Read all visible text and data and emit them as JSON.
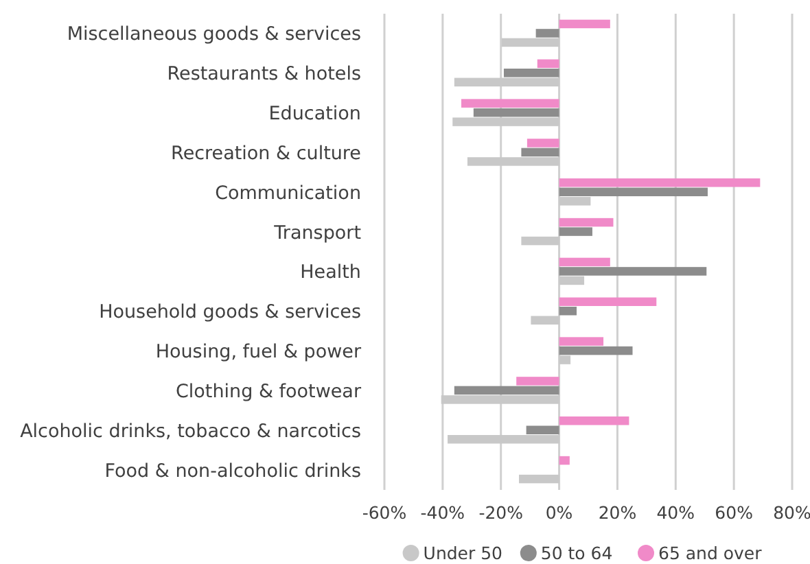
{
  "chart_data": {
    "type": "bar",
    "orientation": "horizontal",
    "categories": [
      "Miscellaneous goods & services",
      "Restaurants & hotels",
      "Education",
      "Recreation & culture",
      "Communication",
      "Transport",
      "Health",
      "Household goods & services",
      "Housing, fuel & power",
      "Clothing & footwear",
      "Alcoholic drinks, tobacco & narcotics",
      "Food & non-alcoholic drinks"
    ],
    "series": [
      {
        "name": "Under 50",
        "color": "#c8c8c8",
        "values": [
          -19.7,
          -36,
          -36.6,
          -31.5,
          10.8,
          -13,
          8.6,
          -9.7,
          3.9,
          -40.5,
          -38.3,
          -13.8
        ]
      },
      {
        "name": "50 to 64",
        "color": "#8c8c8c",
        "values": [
          -8,
          -19,
          -29.4,
          -13,
          51,
          11.4,
          50.6,
          6,
          25.2,
          -36,
          -11.3,
          0
        ]
      },
      {
        "name": "65 and over",
        "color": "#f08ac8",
        "values": [
          17.5,
          -7.5,
          -33.6,
          -11,
          69,
          18.6,
          17.5,
          33.4,
          15.2,
          -14.7,
          24,
          3.6
        ]
      }
    ],
    "xlim": [
      -60,
      80
    ],
    "xticks": [
      {
        "value": -60,
        "label": "-60%"
      },
      {
        "value": -40,
        "label": "-40%"
      },
      {
        "value": -20,
        "label": "-20%"
      },
      {
        "value": 0,
        "label": "0%"
      },
      {
        "value": 20,
        "label": "20%"
      },
      {
        "value": 40,
        "label": "40%"
      },
      {
        "value": 60,
        "label": "60%"
      },
      {
        "value": 80,
        "label": "80%"
      }
    ],
    "grid": "x",
    "legend": "bottom"
  }
}
